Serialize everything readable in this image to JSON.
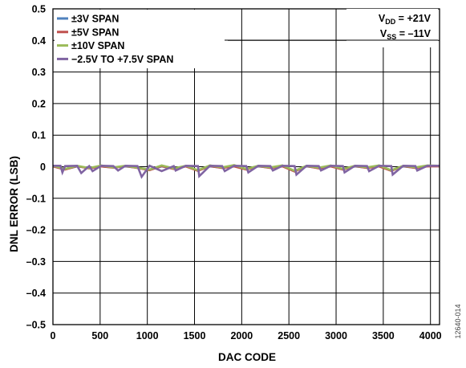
{
  "chart_data": {
    "type": "line",
    "title": "",
    "xlabel": "DAC CODE",
    "ylabel": "DNL ERROR (LSB)",
    "xlim": [
      0,
      4096
    ],
    "ylim": [
      -0.5,
      0.5
    ],
    "x_ticks": [
      0,
      500,
      1000,
      1500,
      2000,
      2500,
      3000,
      3500,
      4000
    ],
    "y_ticks": [
      0.5,
      0.4,
      0.3,
      0.2,
      0.1,
      0,
      -0.1,
      -0.2,
      -0.3,
      -0.4,
      -0.5
    ],
    "x_tick_labels": [
      "0",
      "500",
      "1000",
      "1500",
      "2000",
      "2500",
      "3000",
      "3500",
      "4000"
    ],
    "y_tick_labels": [
      "0.5",
      "0.4",
      "0.3",
      "0.2",
      "0.1",
      "0",
      "–0.1",
      "–0.2",
      "–0.3",
      "–0.4",
      "–0.5"
    ],
    "grid": true,
    "legend_position": "top-left",
    "series": [
      {
        "name": "±3V SPAN",
        "color": "#4f81bd",
        "x": [
          0,
          128,
          256,
          384,
          512,
          640,
          768,
          896,
          1024,
          1152,
          1280,
          1408,
          1536,
          1664,
          1792,
          1920,
          2048,
          2176,
          2304,
          2432,
          2560,
          2688,
          2816,
          2944,
          3072,
          3200,
          3328,
          3456,
          3584,
          3712,
          3840,
          3968,
          4095
        ],
        "y": [
          0.002,
          -0.008,
          0.001,
          -0.004,
          0.001,
          -0.002,
          0.001,
          -0.003,
          -0.01,
          0.001,
          -0.006,
          0.002,
          -0.012,
          0.001,
          -0.003,
          0.002,
          -0.008,
          0.001,
          -0.003,
          0.002,
          -0.014,
          0.001,
          -0.004,
          0.002,
          -0.008,
          0.001,
          -0.003,
          0.002,
          -0.012,
          0.001,
          -0.003,
          0.002,
          0.002
        ]
      },
      {
        "name": "±5V SPAN",
        "color": "#c0504d",
        "x": [
          0,
          128,
          256,
          384,
          512,
          640,
          768,
          896,
          1024,
          1152,
          1280,
          1408,
          1536,
          1664,
          1792,
          1920,
          2048,
          2176,
          2304,
          2432,
          2560,
          2688,
          2816,
          2944,
          3072,
          3200,
          3328,
          3456,
          3584,
          3712,
          3840,
          3968,
          4095
        ],
        "y": [
          0.001,
          -0.009,
          0.002,
          -0.005,
          0.001,
          -0.003,
          0.002,
          -0.004,
          -0.011,
          0.002,
          -0.007,
          0.001,
          -0.013,
          0.002,
          -0.004,
          0.001,
          -0.009,
          0.002,
          -0.004,
          0.001,
          -0.015,
          0.002,
          -0.005,
          0.001,
          -0.009,
          0.002,
          -0.004,
          0.001,
          -0.013,
          0.002,
          -0.004,
          0.001,
          0.001
        ]
      },
      {
        "name": "±10V SPAN",
        "color": "#9bbb59",
        "x": [
          0,
          128,
          256,
          384,
          512,
          640,
          768,
          896,
          1024,
          1152,
          1280,
          1408,
          1536,
          1664,
          1792,
          1920,
          2048,
          2176,
          2304,
          2432,
          2560,
          2688,
          2816,
          2944,
          3072,
          3200,
          3328,
          3456,
          3584,
          3712,
          3840,
          3968,
          4095
        ],
        "y": [
          0.003,
          -0.007,
          0.003,
          -0.004,
          0.004,
          -0.002,
          0.003,
          -0.003,
          -0.009,
          0.004,
          -0.005,
          0.003,
          -0.011,
          0.004,
          -0.002,
          0.005,
          -0.007,
          0.003,
          -0.002,
          0.004,
          -0.013,
          0.003,
          -0.003,
          0.004,
          -0.007,
          0.003,
          -0.002,
          0.004,
          -0.011,
          0.003,
          -0.002,
          0.004,
          0.003
        ]
      },
      {
        "name": "−2.5V TO +7.5V SPAN",
        "color": "#8064a2",
        "x": [
          0,
          80,
          100,
          128,
          256,
          300,
          384,
          420,
          512,
          640,
          690,
          768,
          896,
          940,
          1024,
          1152,
          1280,
          1300,
          1408,
          1536,
          1550,
          1664,
          1792,
          1820,
          1920,
          2048,
          2070,
          2176,
          2304,
          2330,
          2432,
          2560,
          2580,
          2688,
          2816,
          2840,
          2944,
          3072,
          3090,
          3200,
          3328,
          3350,
          3456,
          3584,
          3600,
          3712,
          3840,
          3860,
          3968,
          4095
        ],
        "y": [
          0.003,
          0.003,
          -0.018,
          0.002,
          0.003,
          -0.02,
          0.002,
          -0.014,
          0.003,
          0.002,
          -0.012,
          0.003,
          0.002,
          -0.032,
          0.003,
          -0.014,
          0.002,
          -0.012,
          0.003,
          0.002,
          -0.03,
          0.003,
          0.002,
          -0.014,
          0.003,
          0.002,
          -0.018,
          0.003,
          0.002,
          -0.012,
          0.003,
          0.002,
          -0.025,
          0.003,
          0.002,
          -0.012,
          0.003,
          0.002,
          -0.018,
          0.003,
          0.002,
          -0.014,
          0.003,
          0.002,
          -0.025,
          0.003,
          0.002,
          -0.012,
          0.003,
          0.003
        ]
      }
    ]
  },
  "annotation": {
    "vdd_label": "V",
    "vdd_sub": "DD",
    "vdd_value": " = +21V",
    "vss_label": "V",
    "vss_sub": "SS",
    "vss_value": " = –11V"
  },
  "figure_id": "12640-014"
}
